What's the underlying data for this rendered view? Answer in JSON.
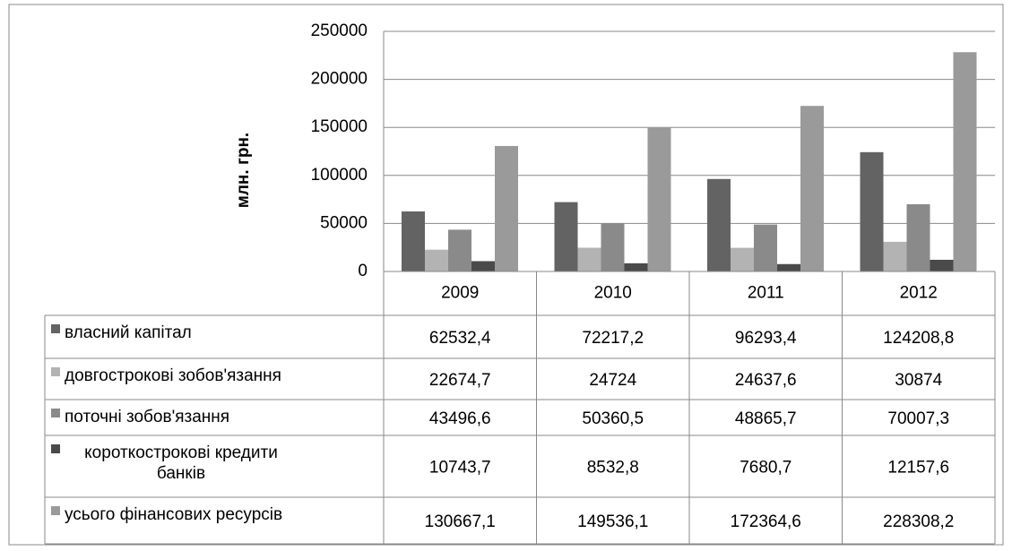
{
  "chart_data": {
    "type": "bar",
    "y_label": "млн. грн.",
    "categories": [
      "2009",
      "2010",
      "2011",
      "2012"
    ],
    "ylim": [
      0,
      250000
    ],
    "yticks": [
      0,
      50000,
      100000,
      150000,
      200000,
      250000
    ],
    "grid": true,
    "series": [
      {
        "name": "власний капітал",
        "color": "#636363",
        "values": [
          62532.4,
          72217.2,
          96293.4,
          124208.8
        ],
        "value_labels": [
          "62532,4",
          "72217,2",
          "96293,4",
          "124208,8"
        ]
      },
      {
        "name": "довгострокові зобов'язання",
        "color": "#b3b3b3",
        "values": [
          22674.7,
          24724,
          24637.6,
          30874
        ],
        "value_labels": [
          "22674,7",
          "24724",
          "24637,6",
          "30874"
        ]
      },
      {
        "name": "поточні зобов'язання",
        "color": "#8a8a8a",
        "values": [
          43496.6,
          50360.5,
          48865.7,
          70007.3
        ],
        "value_labels": [
          "43496,6",
          "50360,5",
          "48865,7",
          "70007,3"
        ]
      },
      {
        "name": "короткострокові кредити банків",
        "color": "#4a4a4a",
        "values": [
          10743.7,
          8532.8,
          7680.7,
          12157.6
        ],
        "value_labels": [
          "10743,7",
          "8532,8",
          "7680,7",
          "12157,6"
        ]
      },
      {
        "name": "усього фінансових ресурсів",
        "color": "#9a9a9a",
        "values": [
          130667.1,
          149536.1,
          172364.6,
          228308.2
        ],
        "value_labels": [
          "130667,1",
          "149536,1",
          "172364,6",
          "228308,2"
        ]
      }
    ]
  }
}
